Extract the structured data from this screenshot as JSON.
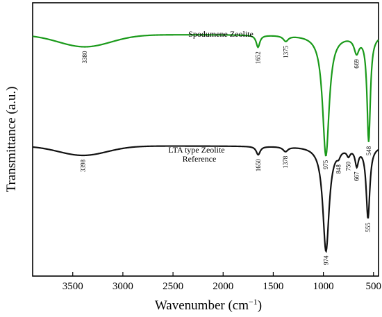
{
  "chart_data": {
    "type": "line",
    "xlabel": "Wavenumber (cm",
    "xlabel_superscript": "−1",
    "xlabel_close": ")",
    "ylabel": "Transmittance (a.u.)",
    "xlim": [
      3900,
      450
    ],
    "x_reversed": true,
    "x_ticks": [
      {
        "value": 3500,
        "label": "3500"
      },
      {
        "value": 3000,
        "label": "3000"
      },
      {
        "value": 2500,
        "label": "2500"
      },
      {
        "value": 2000,
        "label": "2000"
      },
      {
        "value": 1500,
        "label": "1500"
      },
      {
        "value": 1000,
        "label": "1000"
      },
      {
        "value": 500,
        "label": "500"
      }
    ],
    "y_ticks_shown": false,
    "grid": false,
    "series": [
      {
        "name": "Spodumene Zeolite",
        "color": "#1a9a1a",
        "y_min": -6.0,
        "y_max": 1.2,
        "baseline": 0,
        "features": [
          {
            "type": "broad",
            "center": 3380,
            "depth": 0.55,
            "width": 260
          },
          {
            "type": "peak",
            "center": 1652,
            "depth": 0.55,
            "width": 22
          },
          {
            "type": "peak",
            "center": 1375,
            "depth": 0.25,
            "width": 30
          },
          {
            "type": "peak",
            "center": 975,
            "depth": 5.5,
            "width": 40
          },
          {
            "type": "peak",
            "center": 669,
            "depth": 0.7,
            "width": 30
          },
          {
            "type": "peak",
            "center": 548,
            "depth": 4.8,
            "width": 20
          }
        ],
        "peak_labels": [
          "3380",
          "1652",
          "1375",
          "975",
          "669",
          "548"
        ],
        "peak_label_positions": [
          3380,
          1652,
          1375,
          975,
          669,
          548
        ]
      },
      {
        "name": "LTA type Zeolite Reference",
        "name_line1": "LTA type Zeolite",
        "name_line2": "Reference",
        "color": "#111111",
        "y_min": -6.2,
        "y_max": 1.2,
        "baseline": 0,
        "features": [
          {
            "type": "broad",
            "center": 3398,
            "depth": 0.5,
            "width": 240
          },
          {
            "type": "peak",
            "center": 1650,
            "depth": 0.45,
            "width": 24
          },
          {
            "type": "peak",
            "center": 1378,
            "depth": 0.25,
            "width": 30
          },
          {
            "type": "peak",
            "center": 974,
            "depth": 5.6,
            "width": 38
          },
          {
            "type": "peak",
            "center": 848,
            "depth": 0.25,
            "width": 20
          },
          {
            "type": "peak",
            "center": 750,
            "depth": 0.35,
            "width": 20
          },
          {
            "type": "peak",
            "center": 667,
            "depth": 0.9,
            "width": 20
          },
          {
            "type": "peak",
            "center": 555,
            "depth": 3.8,
            "width": 22
          }
        ],
        "peak_labels": [
          "3398",
          "1650",
          "1378",
          "974",
          "848",
          "750",
          "667",
          "555"
        ],
        "peak_label_positions": [
          3398,
          1650,
          1378,
          974,
          848,
          750,
          667,
          555
        ]
      }
    ]
  }
}
